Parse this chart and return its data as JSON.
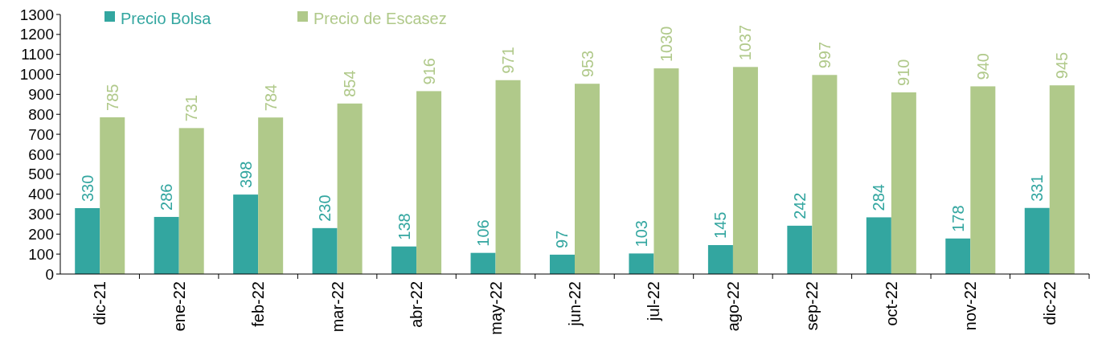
{
  "chart_data": {
    "type": "bar",
    "categories": [
      "dic-21",
      "ene-22",
      "feb-22",
      "mar-22",
      "abr-22",
      "may-22",
      "jun-22",
      "jul-22",
      "ago-22",
      "sep-22",
      "oct-22",
      "nov-22",
      "dic-22"
    ],
    "series": [
      {
        "name": "Precio Bolsa",
        "color": "#33a6a0",
        "values": [
          330,
          286,
          398,
          230,
          138,
          106,
          97,
          103,
          145,
          242,
          284,
          178,
          331
        ]
      },
      {
        "name": "Precio de Escasez",
        "color": "#b0c98a",
        "values": [
          785,
          731,
          784,
          854,
          916,
          971,
          953,
          1030,
          1037,
          997,
          910,
          940,
          945
        ]
      }
    ],
    "ylim": [
      0,
      1300
    ],
    "yticks": [
      0,
      100,
      200,
      300,
      400,
      500,
      600,
      700,
      800,
      900,
      1000,
      1100,
      1200,
      1300
    ],
    "data_labels": true,
    "legend": "top",
    "grid": false
  }
}
